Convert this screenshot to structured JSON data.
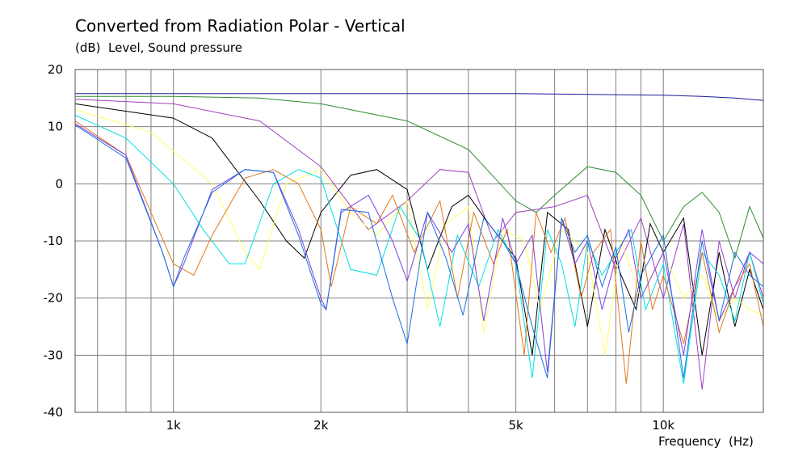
{
  "chart_data": {
    "type": "line",
    "title": "Converted from Radiation Polar - Vertical",
    "subtitle": "(dB)  Level, Sound pressure",
    "xlabel": "Frequency  (Hz)",
    "xscale": "log",
    "xlim": [
      630,
      16000
    ],
    "ylim": [
      -40,
      20
    ],
    "yticks": [
      20,
      10,
      0,
      -10,
      -20,
      -30,
      -40
    ],
    "xtick_labels": [
      {
        "value": 1000,
        "label": "1k"
      },
      {
        "value": 2000,
        "label": "2k"
      },
      {
        "value": 5000,
        "label": "5k"
      },
      {
        "value": 10000,
        "label": "10k"
      }
    ],
    "x_gridlines": [
      700,
      800,
      900,
      1000,
      2000,
      3000,
      4000,
      5000,
      6000,
      7000,
      8000,
      9000,
      10000
    ],
    "y_gridlines": [
      20,
      10,
      0,
      -10,
      -20,
      -30,
      -40
    ],
    "grid": true,
    "series": [
      {
        "color": "#1a1a99",
        "x": [
          630,
          1000,
          2000,
          5000,
          8000,
          10000,
          12000,
          14000,
          16000
        ],
        "y": [
          15.8,
          15.8,
          15.8,
          15.8,
          15.6,
          15.5,
          15.3,
          15.0,
          14.6
        ]
      },
      {
        "color": "#2e8b2e",
        "x": [
          630,
          1000,
          1500,
          2000,
          3000,
          4000,
          5000,
          5500,
          6000,
          7000,
          8000,
          9000,
          10000,
          11000,
          12000,
          13000,
          14000,
          15000,
          16000
        ],
        "y": [
          15.3,
          15.3,
          15,
          14,
          11,
          6,
          -3,
          -5,
          -2,
          3,
          2,
          -2,
          -10,
          -4,
          -1.5,
          -5,
          -13,
          -4,
          -9.5
        ]
      },
      {
        "color": "#a040c0",
        "x": [
          630,
          1000,
          1500,
          2000,
          2500,
          3000,
          3500,
          4000,
          4500,
          5000,
          6000,
          7000,
          8000,
          9000,
          10000,
          11000,
          12000,
          13000,
          14000,
          15000,
          16000
        ],
        "y": [
          14.8,
          14,
          11,
          3,
          -8,
          -3,
          2.5,
          2,
          -10,
          -5,
          -4,
          -2,
          -15,
          -6,
          -20,
          -7,
          -36,
          -10,
          -20,
          -12,
          -20
        ]
      },
      {
        "color": "#000000",
        "x": [
          630,
          1000,
          1200,
          1500,
          1700,
          1850,
          2000,
          2300,
          2600,
          3000,
          3300,
          3700,
          4000,
          4400,
          5000,
          5400,
          5800,
          6400,
          7000,
          7600,
          8200,
          8800,
          9400,
          10000,
          11000,
          12000,
          13000,
          14000,
          15000,
          16000
        ],
        "y": [
          14,
          11.5,
          8,
          -3,
          -10,
          -13,
          -5,
          1.5,
          2.5,
          -1,
          -15,
          -4,
          -2,
          -7,
          -13,
          -30,
          -5,
          -8,
          -25,
          -8,
          -16,
          -22,
          -7,
          -12,
          -6,
          -30,
          -12,
          -25,
          -15,
          -22
        ]
      },
      {
        "color": "#ffff66",
        "x": [
          630,
          900,
          1200,
          1400,
          1500,
          1700,
          2000,
          2300,
          2600,
          3000,
          3300,
          3600,
          4000,
          4300,
          4700,
          5200,
          5600,
          6200,
          7000,
          7600,
          8200,
          9000,
          10000,
          11000,
          12000,
          13000,
          14000,
          15000,
          16000
        ],
        "y": [
          13,
          9,
          0,
          -12,
          -15,
          0,
          2.5,
          -5,
          -9,
          -3,
          -22,
          -7,
          -4,
          -26,
          -8,
          -10,
          -22,
          -8,
          -12,
          -30,
          -10,
          -20,
          -12,
          -20,
          -16,
          -24,
          -20,
          -22,
          -23
        ]
      },
      {
        "color": "#00e0e0",
        "x": [
          630,
          800,
          1000,
          1150,
          1300,
          1400,
          1600,
          1800,
          2000,
          2300,
          2600,
          2900,
          3200,
          3500,
          3800,
          4200,
          4600,
          5000,
          5400,
          5800,
          6200,
          6600,
          7000,
          7500,
          8000,
          8600,
          9200,
          10000,
          11000,
          12000,
          13000,
          14000,
          15000,
          16000
        ],
        "y": [
          12,
          8,
          0,
          -8,
          -14,
          -14,
          0,
          2.5,
          1,
          -15,
          -16,
          -4,
          -10,
          -25,
          -9,
          -18,
          -8,
          -14,
          -34,
          -8,
          -14,
          -25,
          -10,
          -16,
          -12,
          -8,
          -22,
          -14,
          -35,
          -12,
          -16,
          -24,
          -12,
          -21
        ]
      },
      {
        "color": "#e07820",
        "x": [
          630,
          800,
          1000,
          1100,
          1200,
          1400,
          1600,
          1800,
          2000,
          2100,
          2300,
          2600,
          2800,
          3100,
          3500,
          3800,
          4100,
          4500,
          4800,
          5200,
          5500,
          5900,
          6300,
          6800,
          7200,
          7800,
          8400,
          9000,
          9500,
          10000,
          11000,
          12000,
          13000,
          14000,
          15000,
          16000
        ],
        "y": [
          11,
          5,
          -14,
          -16,
          -9,
          1,
          2.5,
          0,
          -8,
          -18,
          -4,
          -7,
          -2,
          -12,
          -3,
          -20,
          -5,
          -14,
          -8,
          -30,
          -5,
          -12,
          -6,
          -20,
          -12,
          -8,
          -35,
          -10,
          -22,
          -16,
          -28,
          -12,
          -26,
          -18,
          -14,
          -25
        ]
      },
      {
        "color": "#8040e0",
        "x": [
          630,
          800,
          950,
          1000,
          1050,
          1200,
          1400,
          1600,
          1800,
          2000,
          2050,
          2200,
          2500,
          2800,
          3000,
          3300,
          3700,
          4000,
          4300,
          4700,
          5000,
          5400,
          5800,
          6200,
          6600,
          7000,
          7500,
          8000,
          8500,
          9000,
          10000,
          11000,
          12000,
          13000,
          14000,
          15000,
          16000
        ],
        "y": [
          10.5,
          5,
          -12,
          -18,
          -14,
          -1,
          2.5,
          2,
          -8,
          -20,
          -22,
          -5,
          -2,
          -10,
          -17,
          -5,
          -12,
          -7,
          -24,
          -6,
          -14,
          -9,
          -33,
          -6,
          -14,
          -10,
          -22,
          -13,
          -8,
          -20,
          -12,
          -30,
          -8,
          -24,
          -18,
          -12,
          -14
        ]
      },
      {
        "color": "#1a70e0",
        "x": [
          630,
          800,
          950,
          1000,
          1050,
          1200,
          1400,
          1600,
          1800,
          2000,
          2050,
          2200,
          2500,
          2800,
          3000,
          3300,
          3600,
          3900,
          4300,
          4700,
          5000,
          5400,
          5800,
          6200,
          6600,
          7000,
          7500,
          8000,
          8500,
          9000,
          10000,
          11000,
          12000,
          13000,
          14000,
          15000,
          16000
        ],
        "y": [
          10.3,
          4.5,
          -12,
          -18,
          -13,
          -1.5,
          2.5,
          2,
          -9,
          -21,
          -22,
          -4.5,
          -5,
          -20,
          -28,
          -5,
          -13,
          -23,
          -6,
          -10,
          -14,
          -25,
          -34,
          -6,
          -12,
          -9,
          -18,
          -11,
          -26,
          -16,
          -9,
          -34,
          -10,
          -24,
          -12,
          -16,
          -18
        ]
      }
    ]
  }
}
